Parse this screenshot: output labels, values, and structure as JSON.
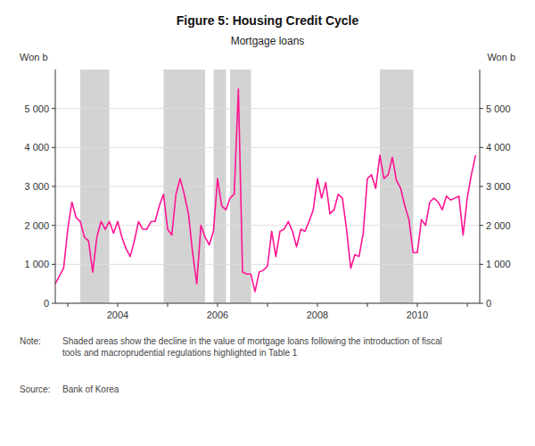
{
  "chart_data": {
    "type": "line",
    "title": "Figure 5: Housing Credit Cycle",
    "subtitle": "Mortgage loans",
    "ylabel": "Won b",
    "y2label": "Won b",
    "note_label": "Note:",
    "note_text": "Shaded areas show the decline in the value of mortgage loans following the introduction of fiscal\ntools and macroprudential regulations highlighted in Table 1",
    "source_label": "Source:",
    "source_text": "Bank of Korea",
    "color": "#FF1493",
    "grid": true,
    "shaded_regions": {
      "color": "#D3D3D3",
      "ranges": [
        [
          2003.25,
          2003.83
        ],
        [
          2004.92,
          2005.75
        ],
        [
          2005.92,
          2006.17
        ],
        [
          2006.25,
          2006.67
        ],
        [
          2009.25,
          2009.92
        ]
      ]
    },
    "xlim": [
      2002.75,
      2011.25
    ],
    "xticks": [
      {
        "value": 2003,
        "label": null
      },
      2004,
      {
        "value": 2005,
        "label": null
      },
      2006,
      {
        "value": 2007,
        "label": null
      },
      2008,
      {
        "value": 2009,
        "label": null
      },
      2010,
      {
        "value": 2011,
        "label": null
      }
    ],
    "ylim": [
      0,
      6000
    ],
    "yticks": [
      0,
      {
        "value": 1000,
        "label": "1 000"
      },
      {
        "value": 2000,
        "label": "2 000"
      },
      {
        "value": 3000,
        "label": "3 000"
      },
      {
        "value": 4000,
        "label": "4 000"
      },
      {
        "value": 5000,
        "label": "5 000"
      }
    ],
    "y2lim": [
      0,
      6000
    ],
    "y2ticks": [
      0,
      {
        "value": 1000,
        "label": "1 000"
      },
      {
        "value": 2000,
        "label": "2 000"
      },
      {
        "value": 3000,
        "label": "3 000"
      },
      {
        "value": 4000,
        "label": "4 000"
      },
      {
        "value": 5000,
        "label": "5 000"
      }
    ],
    "x": [
      2002.75,
      2002.917,
      2003.0,
      2003.083,
      2003.167,
      2003.25,
      2003.333,
      2003.417,
      2003.5,
      2003.583,
      2003.667,
      2003.75,
      2003.833,
      2003.917,
      2004.0,
      2004.083,
      2004.167,
      2004.25,
      2004.333,
      2004.417,
      2004.5,
      2004.583,
      2004.667,
      2004.75,
      2004.833,
      2004.917,
      2005.0,
      2005.083,
      2005.167,
      2005.25,
      2005.333,
      2005.417,
      2005.5,
      2005.583,
      2005.667,
      2005.75,
      2005.833,
      2005.917,
      2006.0,
      2006.083,
      2006.167,
      2006.25,
      2006.333,
      2006.417,
      2006.5,
      2006.583,
      2006.667,
      2006.75,
      2006.833,
      2006.917,
      2007.0,
      2007.083,
      2007.167,
      2007.25,
      2007.333,
      2007.417,
      2007.5,
      2007.583,
      2007.667,
      2007.75,
      2007.833,
      2007.917,
      2008.0,
      2008.083,
      2008.167,
      2008.25,
      2008.333,
      2008.417,
      2008.5,
      2008.583,
      2008.667,
      2008.75,
      2008.833,
      2008.917,
      2009.0,
      2009.083,
      2009.167,
      2009.25,
      2009.333,
      2009.417,
      2009.5,
      2009.583,
      2009.667,
      2009.75,
      2009.833,
      2009.917,
      2010.0,
      2010.083,
      2010.167,
      2010.25,
      2010.333,
      2010.417,
      2010.5,
      2010.583,
      2010.667,
      2010.75,
      2010.833,
      2010.917,
      2011.0,
      2011.083,
      2011.167
    ],
    "values": [
      500,
      900,
      1900,
      2600,
      2200,
      2100,
      1700,
      1600,
      800,
      1700,
      2100,
      1900,
      2100,
      1800,
      2100,
      1700,
      1400,
      1200,
      1600,
      2100,
      1900,
      1900,
      2100,
      2100,
      2500,
      2800,
      1900,
      1750,
      2800,
      3200,
      2800,
      2300,
      1300,
      500,
      2000,
      1700,
      1500,
      1850,
      3200,
      2500,
      2400,
      2700,
      2800,
      5500,
      800,
      750,
      750,
      300,
      800,
      850,
      950,
      1850,
      1200,
      1850,
      1900,
      2100,
      1850,
      1450,
      1900,
      1850,
      2100,
      2400,
      3200,
      2700,
      3100,
      2300,
      2400,
      2800,
      2700,
      1900,
      900,
      1250,
      1200,
      1800,
      3200,
      3300,
      2950,
      3800,
      3200,
      3300,
      3750,
      3150,
      2950,
      2500,
      2150,
      1300,
      1300,
      2150,
      2000,
      2600,
      2700,
      2600,
      2400,
      2750,
      2650,
      2700,
      2750,
      1750,
      2700,
      3300,
      3800
    ]
  }
}
